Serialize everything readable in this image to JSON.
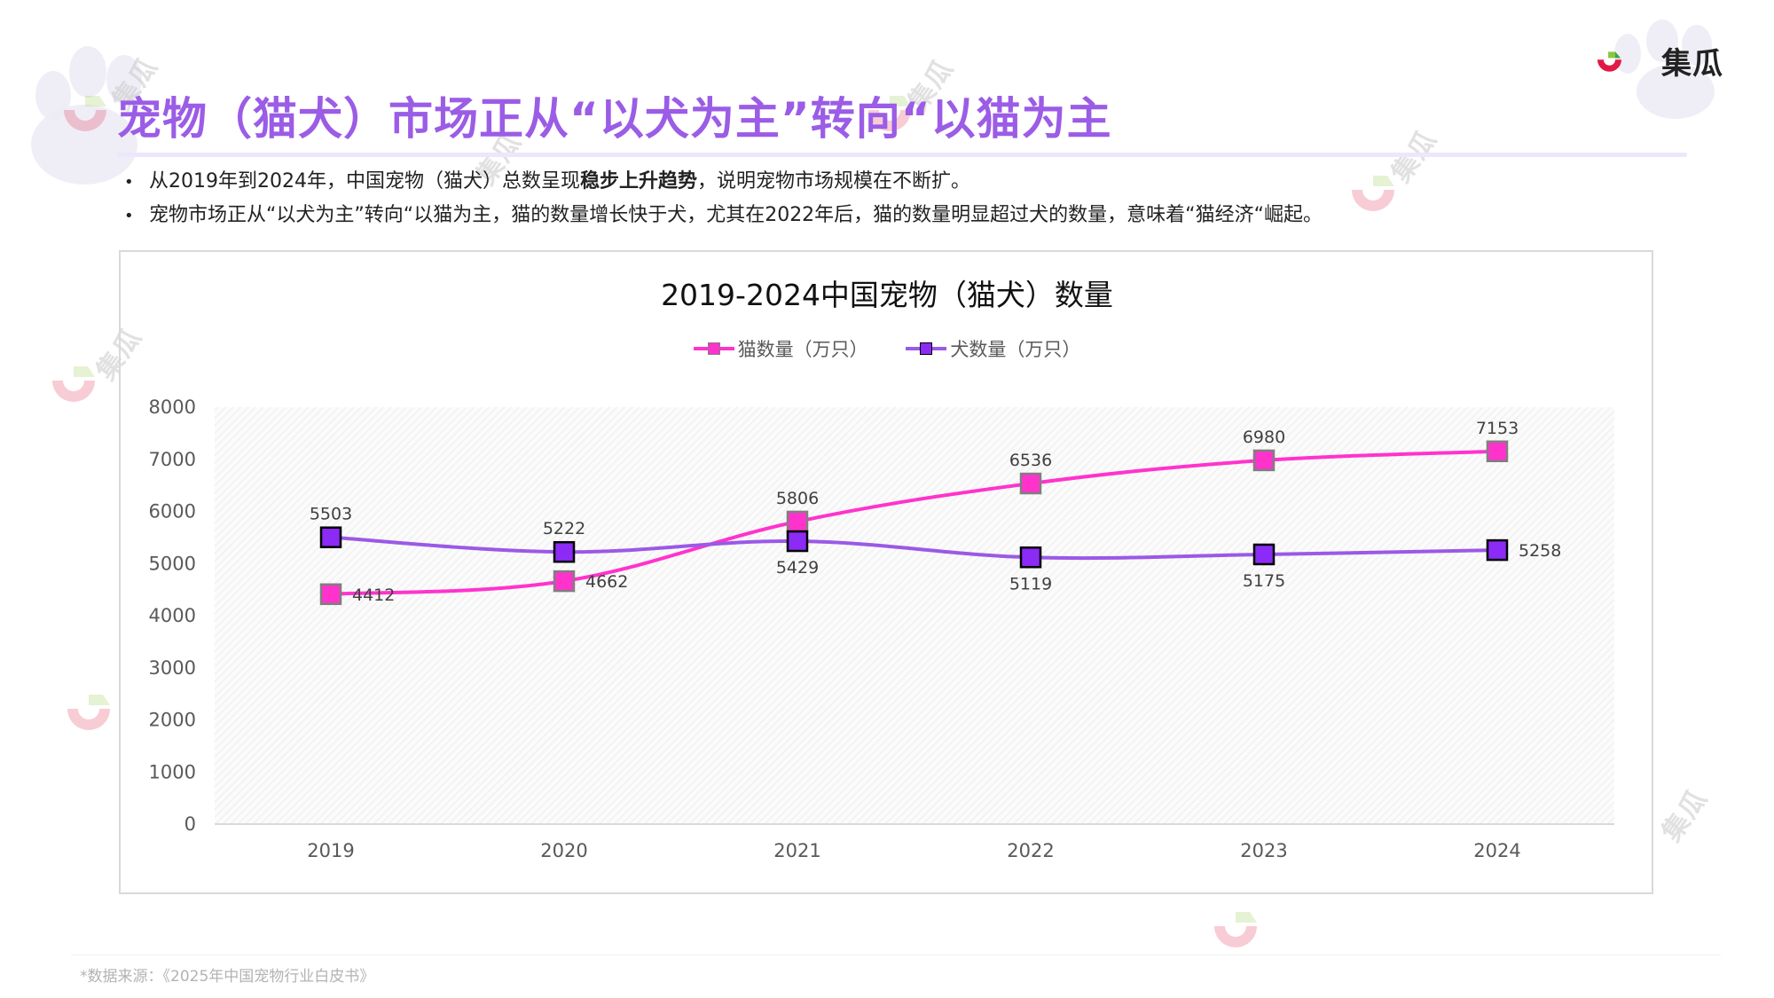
{
  "header": {
    "title": "宠物（猫犬）市场正从“以犬为主”转向“以猫为主",
    "logo_text": "集瓜",
    "watermark_text": "集瓜"
  },
  "bullets": [
    {
      "before": "从2019年到2024年，中国宠物（猫犬）总数呈现",
      "bold": "稳步上升趋势",
      "after": "，说明宠物市场规模在不断扩。"
    },
    {
      "before": "宠物市场正从“以犬为主”转向“以猫为主，猫的数量增长快于犬，尤其在2022年后，猫的数量明显超过犬的数量，意味着“猫经济“崛起。",
      "bold": "",
      "after": ""
    }
  ],
  "footer": {
    "source": "*数据来源：《2025年中国宠物行业白皮书》"
  },
  "colors": {
    "title": "#9b5ce6",
    "cat_line": "#ff33cc",
    "cat_marker": "#ff33cc",
    "cat_marker_border": "#7f7f7f",
    "dog_line": "#9b59e6",
    "dog_marker": "#8b2bf5",
    "dog_marker_border": "#000000",
    "logo_red": "#e01a45",
    "logo_green": "#8cc63f"
  },
  "chart_data": {
    "type": "line",
    "title": "2019-2024中国宠物（猫犬）数量",
    "xlabel": "",
    "ylabel": "",
    "categories": [
      "2019",
      "2020",
      "2021",
      "2022",
      "2023",
      "2024"
    ],
    "series": [
      {
        "name": "猫数量（万只）",
        "values": [
          4412,
          4662,
          5806,
          6536,
          6980,
          7153
        ],
        "label_pos": [
          "right",
          "right",
          "above",
          "above",
          "above",
          "above"
        ]
      },
      {
        "name": "犬数量（万只）",
        "values": [
          5503,
          5222,
          5429,
          5119,
          5175,
          5258
        ],
        "label_pos": [
          "above",
          "above",
          "below",
          "below",
          "below",
          "right"
        ]
      }
    ],
    "ylim": [
      0,
      8000
    ],
    "yticks": [
      "0",
      "1000",
      "2000",
      "3000",
      "4000",
      "5000",
      "6000",
      "7000",
      "8000"
    ],
    "grid": false,
    "smooth": true,
    "legend_position": "top"
  }
}
